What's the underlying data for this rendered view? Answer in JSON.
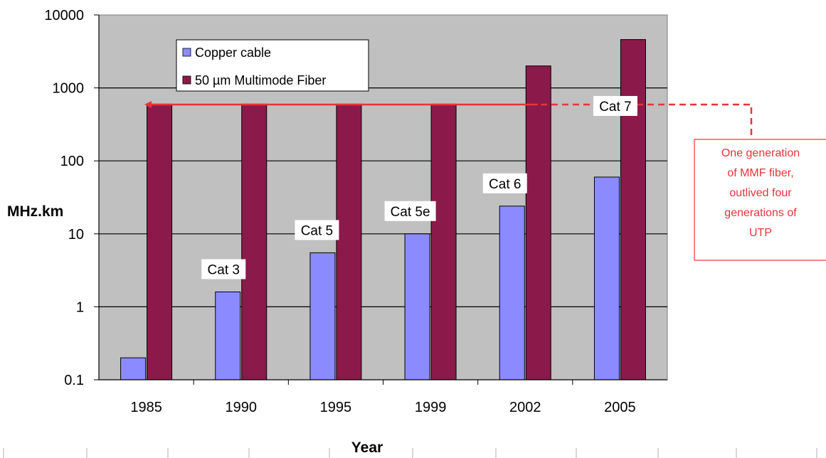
{
  "chart_data": {
    "type": "bar",
    "title": "",
    "xlabel": "Year",
    "ylabel": "MHz.km",
    "yscale": "log",
    "ylim": [
      0.1,
      10000
    ],
    "yticks": [
      "10000",
      "1000",
      "100",
      "10",
      "1",
      "0.1"
    ],
    "grid": true,
    "legend_position": "top-left",
    "categories": [
      "1985",
      "1990",
      "1995",
      "1999",
      "2002",
      "2005"
    ],
    "series": [
      {
        "name": "Copper cable",
        "color": "#8b8bff",
        "values": [
          0.2,
          1.6,
          5.5,
          10,
          24,
          60
        ]
      },
      {
        "name": "50 µm Multimode Fiber",
        "color": "#8b1a4a",
        "values": [
          600,
          600,
          600,
          600,
          2000,
          4600
        ]
      }
    ],
    "annotations": {
      "bar_labels": [
        {
          "category": "1990",
          "text": "Cat 3"
        },
        {
          "category": "1995",
          "text": "Cat 5"
        },
        {
          "category": "1999",
          "text": "Cat 5e"
        },
        {
          "category": "2002",
          "text": "Cat 6"
        },
        {
          "category": "2005",
          "text": "Cat 7"
        }
      ],
      "note_lines": [
        "One generation",
        "of MMF fiber,",
        "outlived four",
        "generations of",
        "UTP"
      ],
      "note_color": "#e8333a"
    },
    "plot_background": "#c0c0c0"
  }
}
